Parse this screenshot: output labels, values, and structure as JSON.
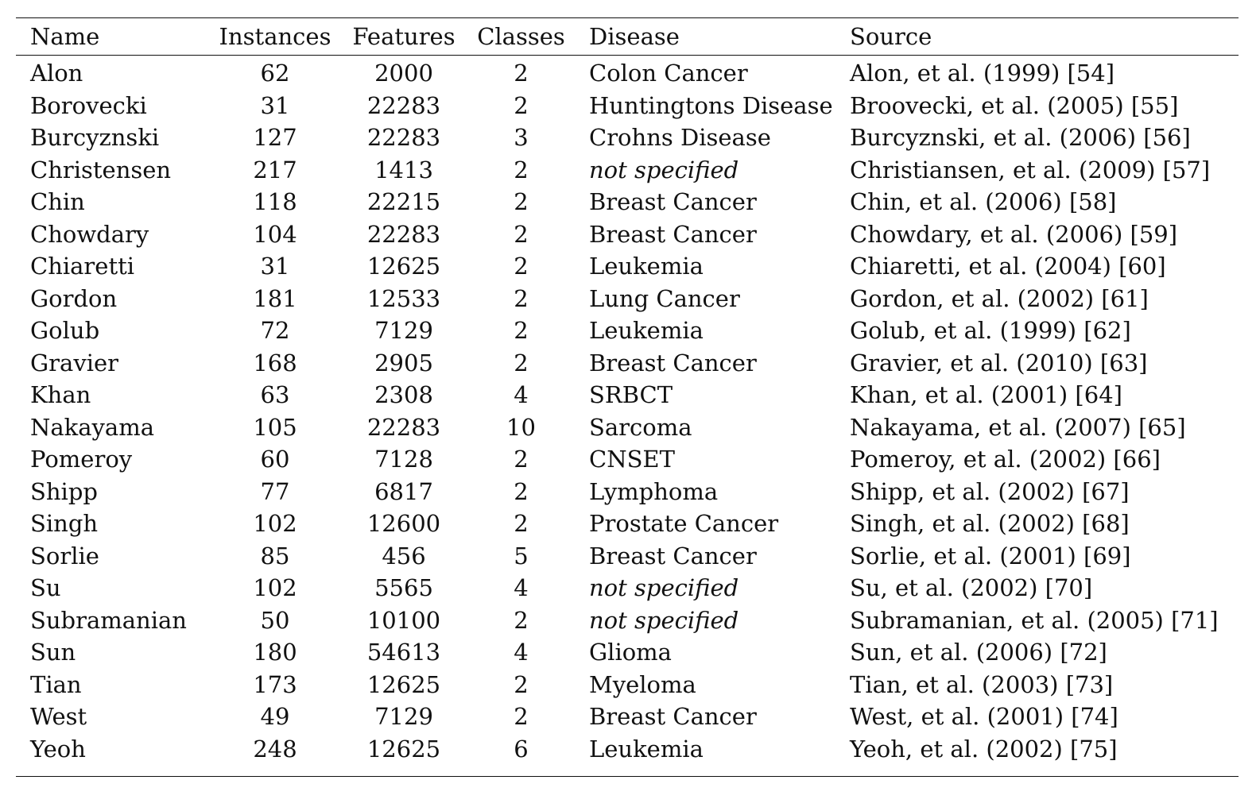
{
  "table": {
    "columns": [
      "Name",
      "Instances",
      "Features",
      "Classes",
      "Disease",
      "Source"
    ],
    "rows": [
      {
        "name": "Alon",
        "instances": "62",
        "features": "2000",
        "classes": "2",
        "disease": "Colon Cancer",
        "disease_italic": false,
        "source": "Alon, et al. (1999) [54]"
      },
      {
        "name": "Borovecki",
        "instances": "31",
        "features": "22283",
        "classes": "2",
        "disease": "Huntingtons Disease",
        "disease_italic": false,
        "source": "Broovecki, et al. (2005) [55]"
      },
      {
        "name": "Burcyznski",
        "instances": "127",
        "features": "22283",
        "classes": "3",
        "disease": "Crohns Disease",
        "disease_italic": false,
        "source": "Burcyznski, et al. (2006) [56]"
      },
      {
        "name": "Christensen",
        "instances": "217",
        "features": "1413",
        "classes": "2",
        "disease": "not specified",
        "disease_italic": true,
        "source": "Christiansen, et al. (2009) [57]"
      },
      {
        "name": "Chin",
        "instances": "118",
        "features": "22215",
        "classes": "2",
        "disease": "Breast Cancer",
        "disease_italic": false,
        "source": "Chin, et al. (2006) [58]"
      },
      {
        "name": "Chowdary",
        "instances": "104",
        "features": "22283",
        "classes": "2",
        "disease": "Breast Cancer",
        "disease_italic": false,
        "source": "Chowdary, et al. (2006) [59]"
      },
      {
        "name": "Chiaretti",
        "instances": "31",
        "features": "12625",
        "classes": "2",
        "disease": "Leukemia",
        "disease_italic": false,
        "source": "Chiaretti, et al. (2004) [60]"
      },
      {
        "name": "Gordon",
        "instances": "181",
        "features": "12533",
        "classes": "2",
        "disease": "Lung Cancer",
        "disease_italic": false,
        "source": "Gordon, et al. (2002) [61]"
      },
      {
        "name": "Golub",
        "instances": "72",
        "features": "7129",
        "classes": "2",
        "disease": "Leukemia",
        "disease_italic": false,
        "source": "Golub, et al. (1999) [62]"
      },
      {
        "name": "Gravier",
        "instances": "168",
        "features": "2905",
        "classes": "2",
        "disease": "Breast Cancer",
        "disease_italic": false,
        "source": "Gravier, et al. (2010) [63]"
      },
      {
        "name": "Khan",
        "instances": "63",
        "features": "2308",
        "classes": "4",
        "disease": "SRBCT",
        "disease_italic": false,
        "source": "Khan, et al. (2001) [64]"
      },
      {
        "name": "Nakayama",
        "instances": "105",
        "features": "22283",
        "classes": "10",
        "disease": "Sarcoma",
        "disease_italic": false,
        "source": "Nakayama, et al. (2007) [65]"
      },
      {
        "name": "Pomeroy",
        "instances": "60",
        "features": "7128",
        "classes": "2",
        "disease": "CNSET",
        "disease_italic": false,
        "source": "Pomeroy, et al. (2002) [66]"
      },
      {
        "name": "Shipp",
        "instances": "77",
        "features": "6817",
        "classes": "2",
        "disease": "Lymphoma",
        "disease_italic": false,
        "source": "Shipp, et al. (2002) [67]"
      },
      {
        "name": "Singh",
        "instances": "102",
        "features": "12600",
        "classes": "2",
        "disease": "Prostate Cancer",
        "disease_italic": false,
        "source": "Singh, et al. (2002) [68]"
      },
      {
        "name": "Sorlie",
        "instances": "85",
        "features": "456",
        "classes": "5",
        "disease": "Breast Cancer",
        "disease_italic": false,
        "source": "Sorlie, et al. (2001) [69]"
      },
      {
        "name": "Su",
        "instances": "102",
        "features": "5565",
        "classes": "4",
        "disease": "not specified",
        "disease_italic": true,
        "source": "Su, et al. (2002) [70]"
      },
      {
        "name": "Subramanian",
        "instances": "50",
        "features": "10100",
        "classes": "2",
        "disease": "not specified",
        "disease_italic": true,
        "source": "Subramanian, et al. (2005) [71]"
      },
      {
        "name": "Sun",
        "instances": "180",
        "features": "54613",
        "classes": "4",
        "disease": "Glioma",
        "disease_italic": false,
        "source": "Sun, et al. (2006) [72]"
      },
      {
        "name": "Tian",
        "instances": "173",
        "features": "12625",
        "classes": "2",
        "disease": "Myeloma",
        "disease_italic": false,
        "source": "Tian, et al. (2003) [73]"
      },
      {
        "name": "West",
        "instances": "49",
        "features": "7129",
        "classes": "2",
        "disease": "Breast Cancer",
        "disease_italic": false,
        "source": "West, et al. (2001) [74]"
      },
      {
        "name": "Yeoh",
        "instances": "248",
        "features": "12625",
        "classes": "6",
        "disease": "Leukemia",
        "disease_italic": false,
        "source": "Yeoh, et al. (2002) [75]"
      }
    ]
  }
}
